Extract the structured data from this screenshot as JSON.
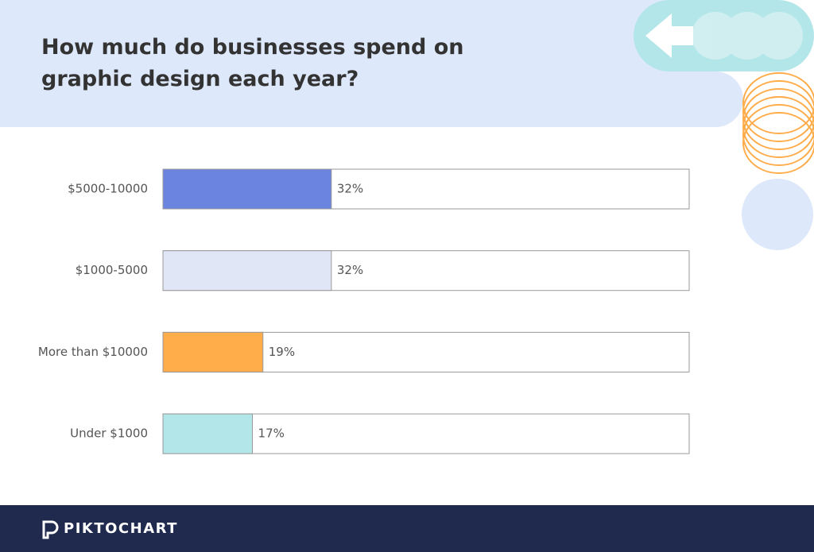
{
  "chart_data": {
    "type": "bar",
    "orientation": "horizontal",
    "title": "How much do businesses spend on graphic design each year?",
    "categories": [
      "$5000-10000",
      "$1000-5000",
      "More than $10000",
      "Under $1000"
    ],
    "values": [
      32,
      32,
      19,
      17
    ],
    "value_labels": [
      "32%",
      "32%",
      "19%",
      "17%"
    ],
    "colors": [
      "#6b84e0",
      "#e1e6f7",
      "#ffac4a",
      "#b3e6e9"
    ],
    "xlim": [
      0,
      100
    ]
  },
  "footer": {
    "brand": "PIKTOCHART"
  }
}
